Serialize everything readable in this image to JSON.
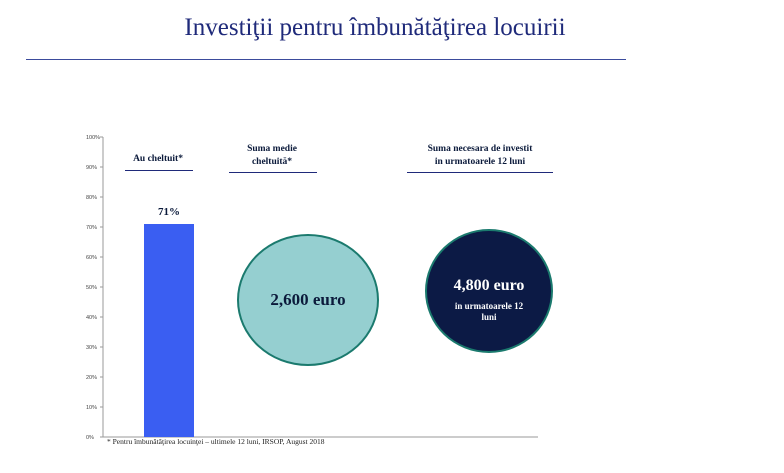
{
  "title": "Investiţii pentru îmbunătăţirea locuirii",
  "headers": {
    "spent": "Au cheltuit*",
    "avg_line1": "Suma medie",
    "avg_line2": "cheltuită*",
    "need_line1": "Suma necesara de investit",
    "need_line2": "in urmatoarele 12 luni"
  },
  "circles": {
    "average_spent": {
      "value": "2,600 euro",
      "color": "#95cfd0"
    },
    "needed_next_12_months": {
      "value": "4,800 euro",
      "sub": "in urmatoarele 12 luni",
      "color": "#0c1a45"
    }
  },
  "footnote": "* Pentru îmbunătăţirea locuinţei – ultimele 12 luni, IRSOP, August 2018",
  "chart_data": {
    "type": "bar",
    "categories": [
      "Au cheltuit*"
    ],
    "values": [
      71
    ],
    "value_labels": [
      "71%"
    ],
    "ylim": [
      0,
      100
    ],
    "yticks": [
      "0%",
      "10%",
      "20%",
      "30%",
      "40%",
      "50%",
      "60%",
      "70%",
      "80%",
      "90%",
      "100%"
    ],
    "bar_color": "#3a5ef2",
    "grid": false
  }
}
